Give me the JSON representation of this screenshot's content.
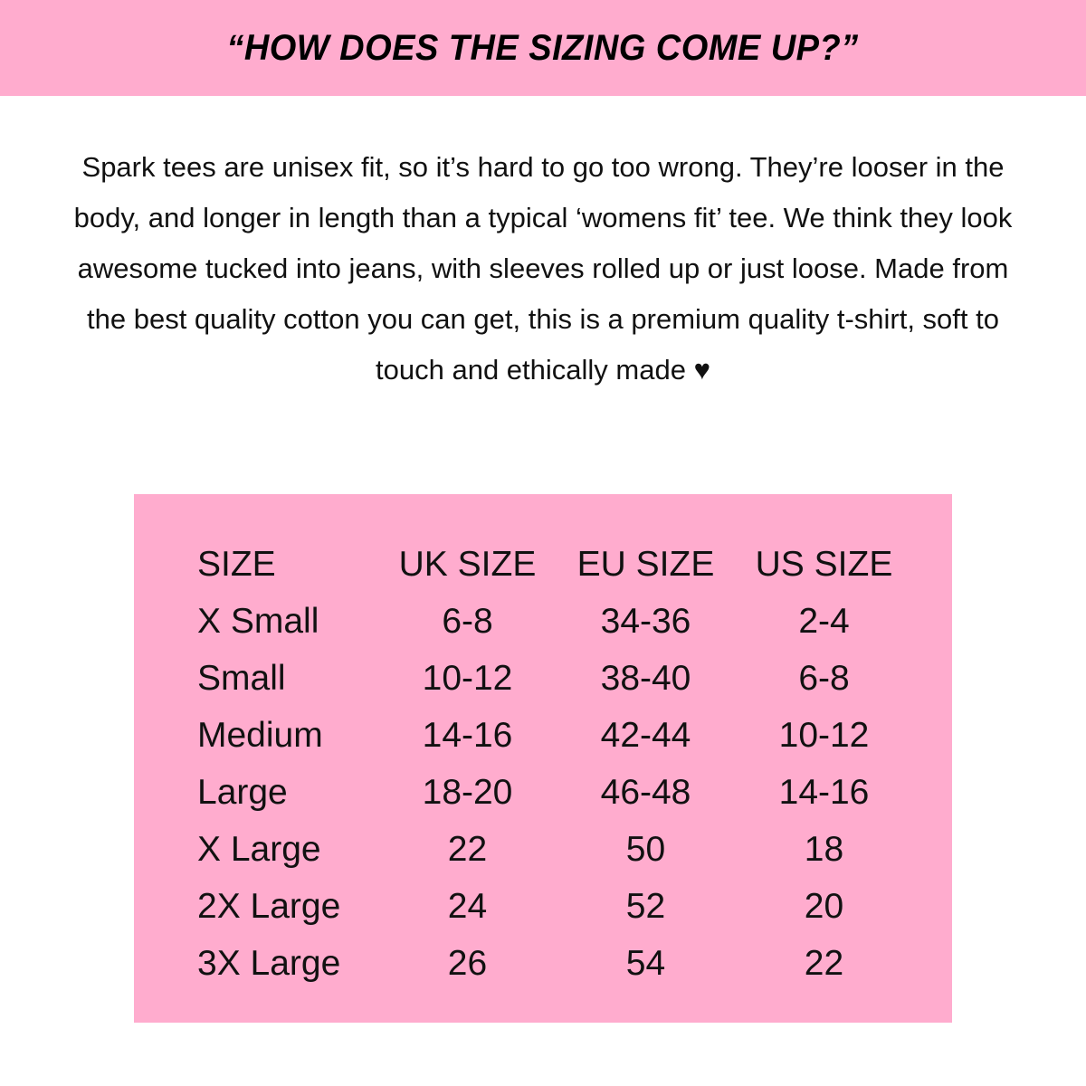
{
  "colors": {
    "accent_pink": "#ffacce",
    "text": "#111111"
  },
  "header": {
    "title": "“HOW DOES THE SIZING COME UP?”"
  },
  "intro": {
    "text": "Spark tees are unisex fit, so it’s hard to go too wrong. They’re looser in the body, and longer in length than a typical ‘womens fit’ tee. We think they look awesome tucked into jeans, with sleeves rolled up or just loose. Made from the best quality cotton you can get, this is a premium quality t-shirt, soft to touch and ethically made ♥"
  },
  "size_table": {
    "headers": [
      "SIZE",
      "UK SIZE",
      "EU SIZE",
      "US SIZE"
    ],
    "rows": [
      [
        "X Small",
        "6-8",
        "34-36",
        "2-4"
      ],
      [
        "Small",
        "10-12",
        "38-40",
        "6-8"
      ],
      [
        "Medium",
        "14-16",
        "42-44",
        "10-12"
      ],
      [
        "Large",
        "18-20",
        "46-48",
        "14-16"
      ],
      [
        "X Large",
        "22",
        "50",
        "18"
      ],
      [
        "2X Large",
        "24",
        "52",
        "20"
      ],
      [
        "3X Large",
        "26",
        "54",
        "22"
      ]
    ]
  }
}
